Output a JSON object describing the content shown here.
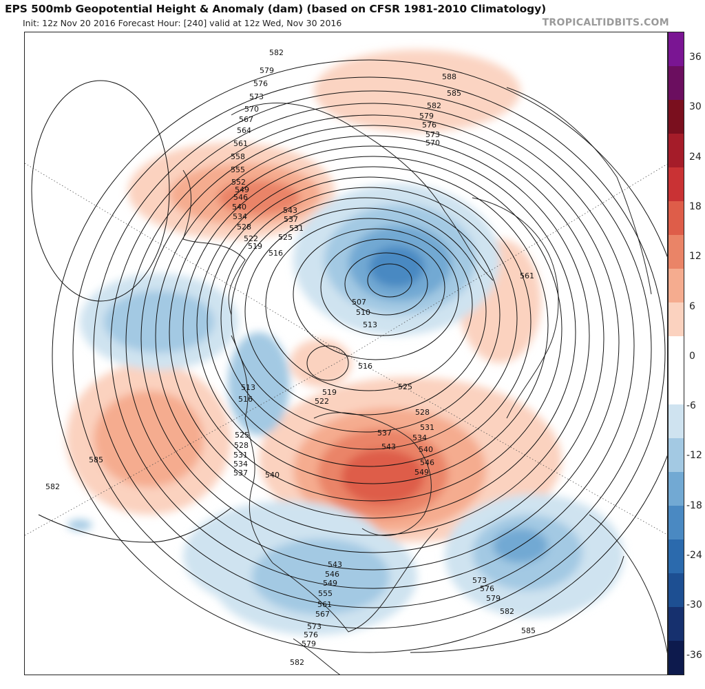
{
  "header": {
    "title": "EPS 500mb Geopotential Height & Anomaly (dam) (based on CFSR 1981-2010 Climatology)",
    "subtitle": "Init: 12z Nov 20 2016   Forecast Hour: [240]   valid at 12z Wed, Nov 30 2016",
    "brand": "TROPICALTIDBITS.COM"
  },
  "colorbar": {
    "ticks": [
      "36",
      "30",
      "24",
      "18",
      "12",
      "6",
      "0",
      "-6",
      "-12",
      "-18",
      "-24",
      "-30",
      "-36"
    ],
    "colors": [
      "#0d1a4d",
      "#16306e",
      "#1d4f92",
      "#2b6aad",
      "#4a89c2",
      "#72a9d3",
      "#a3c9e3",
      "#cfe3f0",
      "#ffffff",
      "#ffffff",
      "#fbd2bf",
      "#f5ac8f",
      "#ea8467",
      "#de5d49",
      "#c93234",
      "#a51c29",
      "#7a0f1e",
      "#6b0e5f",
      "#7a1593"
    ]
  },
  "map": {
    "contour_labels": [
      {
        "id": "l582a",
        "text": "582"
      },
      {
        "id": "l579a",
        "text": "579"
      },
      {
        "id": "l576a",
        "text": "576"
      },
      {
        "id": "l573a",
        "text": "573"
      },
      {
        "id": "l570a",
        "text": "570"
      },
      {
        "id": "l567a",
        "text": "567"
      },
      {
        "id": "l564a",
        "text": "564"
      },
      {
        "id": "l561a",
        "text": "561"
      },
      {
        "id": "l558a",
        "text": "558"
      },
      {
        "id": "l555a",
        "text": "555"
      },
      {
        "id": "l552a",
        "text": "552"
      },
      {
        "id": "l549a",
        "text": "549"
      },
      {
        "id": "l546a",
        "text": "546"
      },
      {
        "id": "l540a",
        "text": "540"
      },
      {
        "id": "l534a",
        "text": "534"
      },
      {
        "id": "l528a",
        "text": "528"
      },
      {
        "id": "l522a",
        "text": "522"
      },
      {
        "id": "l519a",
        "text": "519"
      },
      {
        "id": "l516a",
        "text": "516"
      },
      {
        "id": "l543b",
        "text": "543"
      },
      {
        "id": "l537b",
        "text": "537"
      },
      {
        "id": "l531b",
        "text": "531"
      },
      {
        "id": "l525b",
        "text": "525"
      },
      {
        "id": "l588c",
        "text": "588"
      },
      {
        "id": "l585c",
        "text": "585"
      },
      {
        "id": "l582c",
        "text": "582"
      },
      {
        "id": "l579c",
        "text": "579"
      },
      {
        "id": "l576c",
        "text": "576"
      },
      {
        "id": "l573c",
        "text": "573"
      },
      {
        "id": "l570c",
        "text": "570"
      },
      {
        "id": "l561d",
        "text": "561"
      },
      {
        "id": "l507e",
        "text": "507"
      },
      {
        "id": "l510e",
        "text": "510"
      },
      {
        "id": "l513e",
        "text": "513"
      },
      {
        "id": "l516f",
        "text": "516"
      },
      {
        "id": "l513g",
        "text": "513"
      },
      {
        "id": "l516g",
        "text": "516"
      },
      {
        "id": "l525h",
        "text": "525"
      },
      {
        "id": "l528h",
        "text": "528"
      },
      {
        "id": "l531h",
        "text": "531"
      },
      {
        "id": "l534h",
        "text": "534"
      },
      {
        "id": "l537h",
        "text": "537"
      },
      {
        "id": "l540i",
        "text": "540"
      },
      {
        "id": "l519j",
        "text": "519"
      },
      {
        "id": "l522j",
        "text": "522"
      },
      {
        "id": "l525j",
        "text": "525"
      },
      {
        "id": "l528j",
        "text": "528"
      },
      {
        "id": "l531j",
        "text": "531"
      },
      {
        "id": "l534j",
        "text": "534"
      },
      {
        "id": "l537j",
        "text": "537"
      },
      {
        "id": "l540j",
        "text": "540"
      },
      {
        "id": "l543j",
        "text": "543"
      },
      {
        "id": "l546j",
        "text": "546"
      },
      {
        "id": "l549j",
        "text": "549"
      },
      {
        "id": "l585k",
        "text": "585"
      },
      {
        "id": "l582k",
        "text": "582"
      },
      {
        "id": "l543m",
        "text": "543"
      },
      {
        "id": "l546m",
        "text": "546"
      },
      {
        "id": "l549m",
        "text": "549"
      },
      {
        "id": "l555m",
        "text": "555"
      },
      {
        "id": "l561m",
        "text": "561"
      },
      {
        "id": "l567m",
        "text": "567"
      },
      {
        "id": "l573m",
        "text": "573"
      },
      {
        "id": "l576m",
        "text": "576"
      },
      {
        "id": "l579m",
        "text": "579"
      },
      {
        "id": "l582m",
        "text": "582"
      },
      {
        "id": "l573n",
        "text": "573"
      },
      {
        "id": "l576n",
        "text": "576"
      },
      {
        "id": "l579n",
        "text": "579"
      },
      {
        "id": "l582n",
        "text": "582"
      },
      {
        "id": "l585n",
        "text": "585"
      }
    ]
  }
}
